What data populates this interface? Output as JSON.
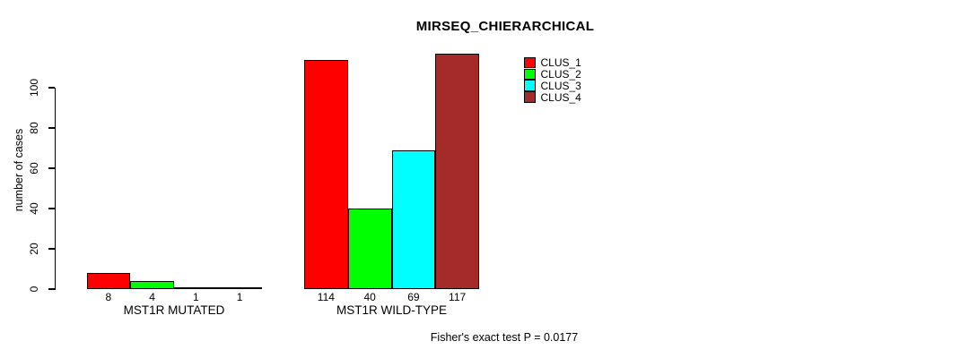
{
  "chart_data": {
    "type": "bar",
    "title": "MIRSEQ_CHIERARCHICAL",
    "ylabel": "number of cases",
    "xlabel": "",
    "ylim": [
      0,
      100
    ],
    "yticks": [
      0,
      20,
      40,
      60,
      80,
      100
    ],
    "grid": false,
    "legend_position": "top-right-inside",
    "categories": [
      "MST1R MUTATED",
      "MST1R WILD-TYPE"
    ],
    "series": [
      {
        "name": "CLUS_1",
        "color": "#FF0000",
        "values": [
          8,
          114
        ]
      },
      {
        "name": "CLUS_2",
        "color": "#00FF00",
        "values": [
          4,
          40
        ]
      },
      {
        "name": "CLUS_3",
        "color": "#00FFFF",
        "values": [
          1,
          69
        ]
      },
      {
        "name": "CLUS_4",
        "color": "#A52A2A",
        "values": [
          1,
          117
        ]
      }
    ],
    "bar_value_labels": {
      "MST1R MUTATED": [
        "8",
        "4",
        "1",
        "1"
      ],
      "MST1R WILD-TYPE": [
        "114",
        "40",
        "69",
        "117"
      ]
    },
    "footnote": "Fisher's exact test P = 0.0177",
    "axis_color": "#000000",
    "background_color": "#FFFFFF"
  }
}
